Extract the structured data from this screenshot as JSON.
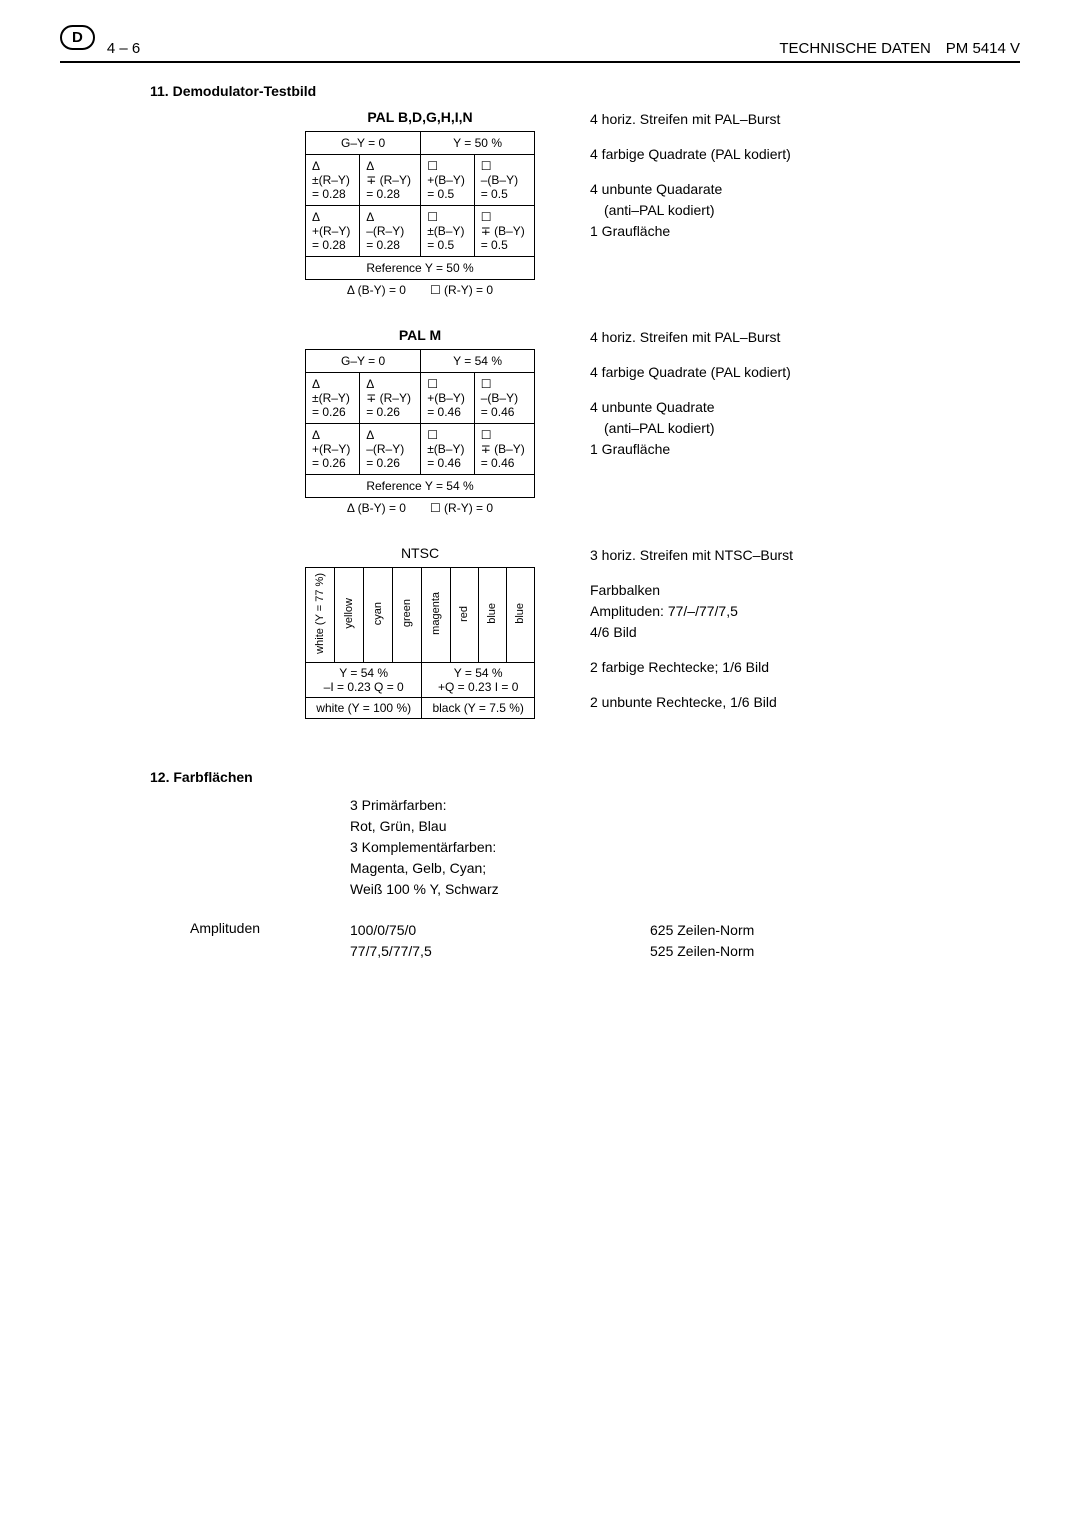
{
  "header": {
    "badge": "D",
    "page": "4 – 6",
    "right": "TECHNISCHE DATEN PM 5414 V"
  },
  "section11": {
    "title": "11. Demodulator-Testbild",
    "pal_bdghin": {
      "title": "PAL B,D,G,H,I,N",
      "h1a": "G–Y = 0",
      "h1b": "Y = 50 %",
      "r1c1": "Δ\n±(R–Y)\n= 0.28",
      "r1c2": "Δ\n∓ (R–Y)\n= 0.28",
      "r1c3": "☐\n+(B–Y)\n= 0.5",
      "r1c4": "☐\n–(B–Y)\n= 0.5",
      "r2c1": "Δ\n+(R–Y)\n= 0.28",
      "r2c2": "Δ\n–(R–Y)\n= 0.28",
      "r2c3": "☐\n±(B–Y)\n= 0.5",
      "r2c4": "☐\n∓ (B–Y)\n= 0.5",
      "ref": "Reference Y = 50 %",
      "below": "Δ (B-Y) = 0  ☐ (R-Y) = 0",
      "desc1": "4 horiz. Streifen mit PAL–Burst",
      "desc2": "4 farbige Quadrate (PAL kodiert)",
      "desc3a": "4 unbunte Quadarate",
      "desc3b": "(anti–PAL kodiert)",
      "desc4": "1 Graufläche"
    },
    "pal_m": {
      "title": "PAL M",
      "h1a": "G–Y = 0",
      "h1b": "Y = 54 %",
      "r1c1": "Δ\n±(R–Y)\n= 0.26",
      "r1c2": "Δ\n∓ (R–Y)\n= 0.26",
      "r1c3": "☐\n+(B–Y)\n= 0.46",
      "r1c4": "☐\n–(B–Y)\n= 0.46",
      "r2c1": "Δ\n+(R–Y)\n= 0.26",
      "r2c2": "Δ\n–(R–Y)\n= 0.26",
      "r2c3": "☐\n±(B–Y)\n= 0.46",
      "r2c4": "☐\n∓ (B–Y)\n= 0.46",
      "ref": "Reference Y = 54 %",
      "below": "Δ (B-Y) = 0  ☐ (R-Y) = 0",
      "desc1": "4 horiz. Streifen mit PAL–Burst",
      "desc2": "4 farbige Quadrate (PAL kodiert)",
      "desc3a": "4 unbunte Quadrate",
      "desc3b": "(anti–PAL kodiert)",
      "desc4": "1 Graufläche"
    },
    "ntsc": {
      "title": "NTSC",
      "bars": [
        "white (Y = 77 %)",
        "yellow",
        "cyan",
        "green",
        "magenta",
        "red",
        "blue",
        "blue"
      ],
      "row2a": "Y = 54 %\n–I  = 0.23   Q = 0",
      "row2b": "Y = 54 %\n+Q = 0.23   I = 0",
      "row3a": "white (Y = 100 %)",
      "row3b": "black (Y = 7.5 %)",
      "desc1": "3 horiz. Streifen mit NTSC–Burst",
      "desc2a": "Farbbalken",
      "desc2b": "Amplituden: 77/–/77/7,5",
      "desc2c": "4/6 Bild",
      "desc3": "2 farbige Rechtecke; 1/6 Bild",
      "desc4": "2 unbunte Rechtecke, 1/6 Bild"
    }
  },
  "section12": {
    "title": "12. Farbflächen",
    "body1": "3 Primärfarben:",
    "body2": "Rot, Grün, Blau",
    "body3": "3 Komplementärfarben:",
    "body4": "Magenta, Gelb, Cyan;",
    "body5": "Weiß 100 % Y, Schwarz",
    "amp_label": "Amplituden",
    "amp_v1": "100/0/75/0",
    "amp_v2": "77/7,5/77/7,5",
    "amp_d1": "625 Zeilen-Norm",
    "amp_d2": "525 Zeilen-Norm"
  }
}
